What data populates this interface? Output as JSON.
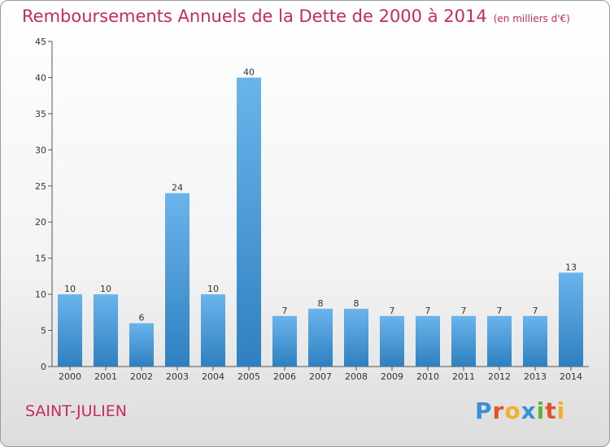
{
  "header": {
    "title": "Remboursements Annuels de la Dette de 2000 à 2014",
    "unit": "(en milliers d'€)"
  },
  "footer": {
    "commune": "SAINT-JULIEN",
    "logo": [
      "P",
      "r",
      "o",
      "x",
      "i",
      "t",
      "i"
    ]
  },
  "colors": {
    "title": "#c72b5b",
    "bar_light": "#6ab4ec",
    "bar_dark": "#2f80c0",
    "axis": "#555555",
    "logo": [
      "#3a8fd6",
      "#e0542b",
      "#f0b02a",
      "#3a8fd6",
      "#5cb23a",
      "#e0542b",
      "#f0b02a"
    ]
  },
  "chart_data": {
    "type": "bar",
    "categories": [
      "2000",
      "2001",
      "2002",
      "2003",
      "2004",
      "2005",
      "2006",
      "2007",
      "2008",
      "2009",
      "2010",
      "2011",
      "2012",
      "2013",
      "2014"
    ],
    "values": [
      10,
      10,
      6,
      24,
      10,
      40,
      7,
      8,
      8,
      7,
      7,
      7,
      7,
      7,
      13
    ],
    "yticks": [
      0,
      5,
      10,
      15,
      20,
      25,
      30,
      35,
      40,
      45
    ],
    "ylim": [
      0,
      45
    ],
    "grid": false
  }
}
